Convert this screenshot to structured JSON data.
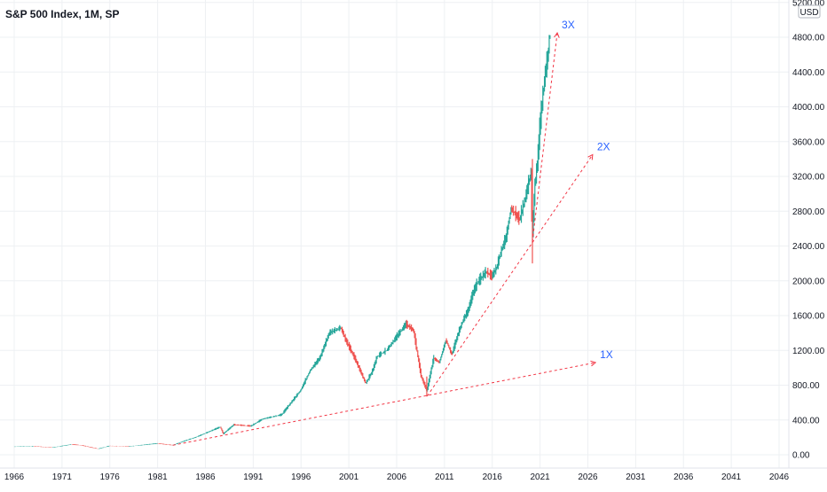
{
  "chart_data": {
    "type": "line",
    "title": "S&P 500 Index, 1M, SP",
    "currency_label": "USD",
    "y_ticks": [
      "0.00",
      "400.00",
      "800.00",
      "1200.00",
      "1600.00",
      "2000.00",
      "2400.00",
      "2800.00",
      "3200.00",
      "3600.00",
      "4000.00",
      "4400.00",
      "4800.00",
      "5200.00"
    ],
    "x_ticks": [
      "1966",
      "1971",
      "1976",
      "1981",
      "1986",
      "1991",
      "1996",
      "2001",
      "2006",
      "2011",
      "2016",
      "2021",
      "2026",
      "2031",
      "2036",
      "2041",
      "2046"
    ],
    "ylim": [
      0,
      5200
    ],
    "xlim": [
      1965.5,
      2047
    ],
    "grid": true,
    "colors": {
      "up": "#26a69a",
      "down": "#ef5350",
      "annotation_line": "#f23645",
      "annotation_text": "#2962ff",
      "grid": "#eef0f3"
    },
    "series": [
      {
        "x": [
          1966,
          1968,
          1970,
          1972,
          1973,
          1974.8,
          1976,
          1978,
          1980,
          1981,
          1982.6,
          1984,
          1985,
          1987.6,
          1987.9,
          1989,
          1990.8,
          1992,
          1994,
          1995,
          1996,
          1997,
          1998,
          1999,
          2000.2,
          2000.7,
          2001.7,
          2002.8,
          2003.5,
          2004,
          2005,
          2006,
          2007,
          2007.8,
          2008.6,
          2009.2,
          2009.9,
          2010.5,
          2011.2,
          2011.8,
          2012.5,
          2013,
          2013.5,
          2014,
          2014.5,
          2015.4,
          2016,
          2016.5,
          2017,
          2017.5,
          2018.0,
          2018.9,
          2019.5,
          2020.1,
          2020.2,
          2020.5,
          2020.8,
          2021,
          2021.3,
          2021.6,
          2021.9,
          2022.0
        ],
        "values": [
          92,
          98,
          83,
          118,
          110,
          68,
          102,
          95,
          118,
          130,
          110,
          165,
          200,
          320,
          240,
          345,
          330,
          410,
          460,
          600,
          740,
          970,
          1110,
          1400,
          1460,
          1320,
          1100,
          820,
          960,
          1130,
          1200,
          1350,
          1500,
          1430,
          900,
          735,
          1110,
          1060,
          1320,
          1150,
          1400,
          1550,
          1650,
          1850,
          1980,
          2100,
          2050,
          2150,
          2350,
          2500,
          2830,
          2700,
          2950,
          3250,
          2450,
          3100,
          3400,
          3750,
          4100,
          4400,
          4600,
          4800
        ]
      }
    ],
    "annotations": [
      {
        "label": "1X",
        "from": [
          1982.6,
          110
        ],
        "to": [
          2026.8,
          1060
        ]
      },
      {
        "label": "2X",
        "from": [
          2009.2,
          675
        ],
        "to": [
          2026.5,
          3450
        ]
      },
      {
        "label": "3X",
        "from": [
          2020.2,
          2450
        ],
        "to": [
          2022.8,
          4850
        ]
      }
    ]
  }
}
